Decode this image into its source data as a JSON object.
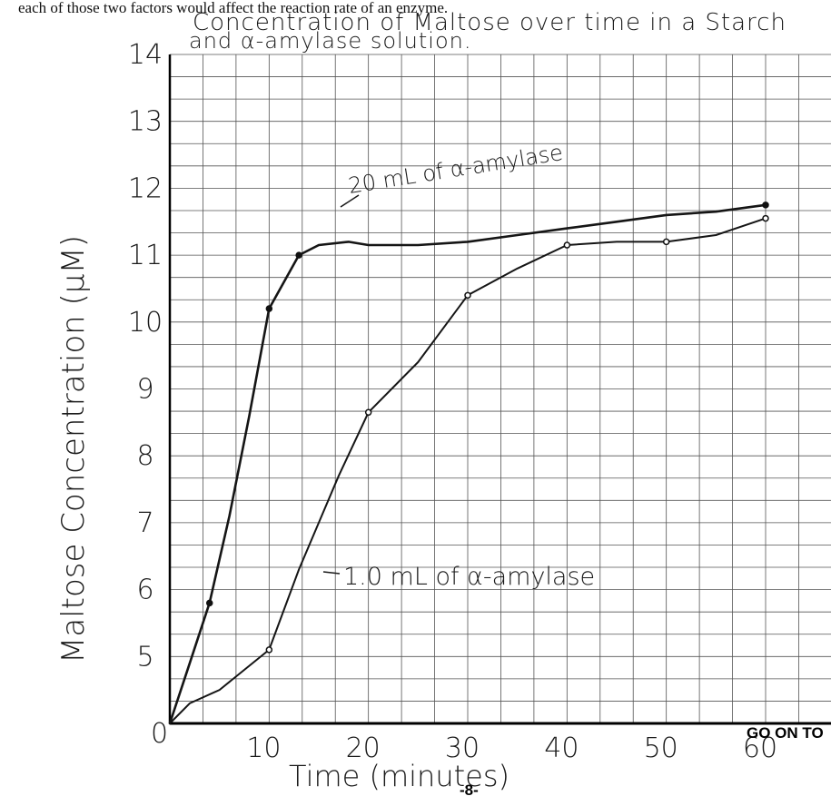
{
  "page_text": {
    "question_fragment": "each of those two factors would affect the reaction rate of an enzyme.",
    "page_number": "-8-",
    "go_on": "GO ON TO"
  },
  "chart_data": {
    "type": "line",
    "title": "Concentration of Maltose over time in a Starch and α-amylase solution.",
    "title_lines": [
      "Concentration of Maltose over time in a Starch",
      "and α-amylase solution."
    ],
    "xlabel": "Time (minutes)",
    "ylabel": "Maltose Concentration (μM)",
    "x_ticks": [
      0,
      10,
      20,
      30,
      40,
      50,
      60
    ],
    "x_tick_labels": [
      "0",
      "10",
      "20",
      "30",
      "40",
      "50",
      "60"
    ],
    "y_ticks": [
      4,
      5,
      6,
      7,
      8,
      9,
      10,
      11,
      12,
      13,
      14
    ],
    "y_tick_labels": [
      "",
      "5",
      "6",
      "7",
      "8",
      "9",
      "10",
      "11",
      "12",
      "13",
      "14"
    ],
    "y_origin_label": "0",
    "xlim": [
      0,
      60
    ],
    "ylim": [
      4,
      14
    ],
    "grid": true,
    "series": [
      {
        "name": "20 mL of α-amylase",
        "x": [
          0,
          2,
          4,
          6,
          8,
          10,
          13,
          15,
          18,
          20,
          25,
          30,
          35,
          40,
          45,
          50,
          55,
          60
        ],
        "y": [
          4.0,
          4.9,
          5.8,
          7.1,
          8.6,
          10.2,
          11.0,
          11.15,
          11.2,
          11.15,
          11.15,
          11.2,
          11.3,
          11.4,
          11.5,
          11.6,
          11.65,
          11.75
        ]
      },
      {
        "name": "1.0 mL of α-amylase",
        "x": [
          0,
          2,
          5,
          10,
          13,
          15,
          17,
          20,
          25,
          30,
          35,
          40,
          45,
          50,
          55,
          60
        ],
        "y": [
          4.0,
          4.3,
          4.5,
          5.1,
          6.3,
          7.0,
          7.7,
          8.65,
          9.4,
          10.4,
          10.8,
          11.15,
          11.2,
          11.2,
          11.3,
          11.55
        ]
      }
    ],
    "marked_points": [
      [
        {
          "x": 4,
          "y": 5.8
        },
        {
          "x": 10,
          "y": 10.2
        },
        {
          "x": 13,
          "y": 11.0
        },
        {
          "x": 60,
          "y": 11.75
        }
      ],
      [
        {
          "x": 10,
          "y": 5.1
        },
        {
          "x": 20,
          "y": 8.65
        },
        {
          "x": 30,
          "y": 10.4
        },
        {
          "x": 40,
          "y": 11.15
        },
        {
          "x": 50,
          "y": 11.2
        },
        {
          "x": 60,
          "y": 11.55
        }
      ]
    ],
    "annotations": [
      {
        "text": "20 mL of α-amylase",
        "series": 0
      },
      {
        "text": "1.0 mL of α-amylase",
        "series": 1
      }
    ]
  }
}
